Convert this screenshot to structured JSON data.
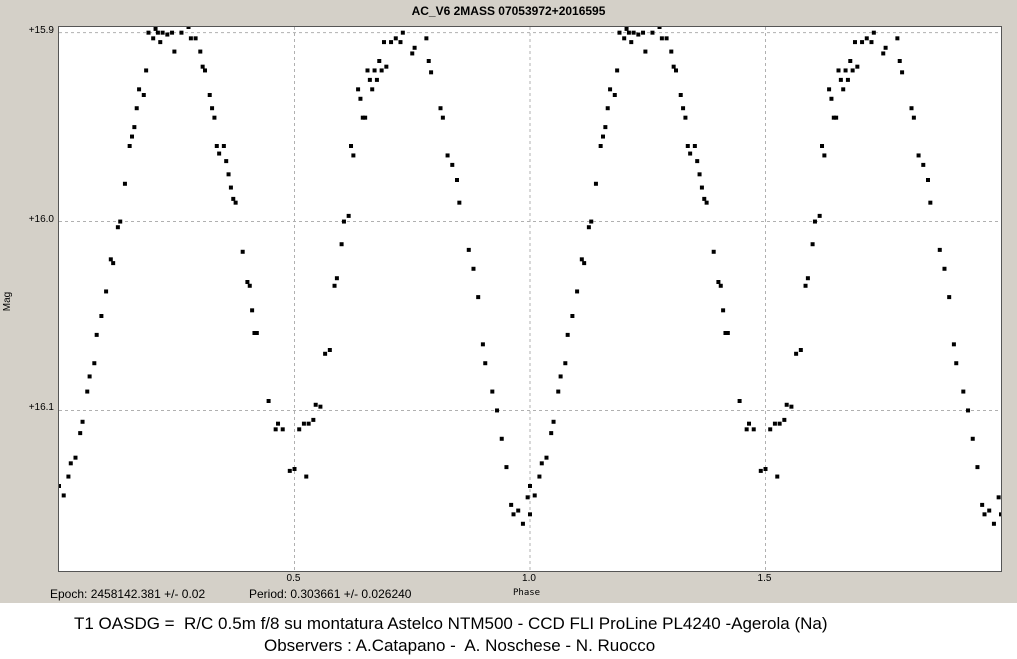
{
  "chart_data": {
    "type": "scatter",
    "title": "AC_V6 2MASS 07053972+2016595",
    "xlabel": "Phase",
    "ylabel": "Mag",
    "xlim": [
      0.0,
      2.0
    ],
    "ylim": [
      16.185,
      15.897
    ],
    "y_inverted": true,
    "grid": true,
    "xticks": [
      {
        "value": 0.5,
        "label": "0.5"
      },
      {
        "value": 1.0,
        "label": "1.0"
      },
      {
        "value": 1.5,
        "label": "1.5"
      }
    ],
    "yticks": [
      {
        "value": 15.9,
        "label": "+15.9"
      },
      {
        "value": 16.0,
        "label": "+16.0"
      },
      {
        "value": 16.1,
        "label": "+16.1"
      }
    ],
    "series": [
      {
        "points": [
          [
            0.0,
            16.14
          ],
          [
            0.01,
            16.145
          ],
          [
            0.02,
            16.135
          ],
          [
            0.025,
            16.128
          ],
          [
            0.035,
            16.125
          ],
          [
            0.045,
            16.112
          ],
          [
            0.05,
            16.106
          ],
          [
            0.06,
            16.09
          ],
          [
            0.065,
            16.082
          ],
          [
            0.075,
            16.075
          ],
          [
            0.08,
            16.06
          ],
          [
            0.09,
            16.05
          ],
          [
            0.1,
            16.037
          ],
          [
            0.11,
            16.02
          ],
          [
            0.115,
            16.022
          ],
          [
            0.125,
            16.003
          ],
          [
            0.13,
            16.0
          ],
          [
            0.14,
            15.98
          ],
          [
            0.15,
            15.96
          ],
          [
            0.155,
            15.955
          ],
          [
            0.16,
            15.95
          ],
          [
            0.165,
            15.94
          ],
          [
            0.17,
            15.93
          ],
          [
            0.18,
            15.933
          ],
          [
            0.185,
            15.92
          ],
          [
            0.19,
            15.9
          ],
          [
            0.2,
            15.903
          ],
          [
            0.205,
            15.898
          ],
          [
            0.21,
            15.9
          ],
          [
            0.215,
            15.905
          ],
          [
            0.22,
            15.9
          ],
          [
            0.23,
            15.901
          ],
          [
            0.24,
            15.9
          ],
          [
            0.245,
            15.91
          ],
          [
            0.25,
            15.895
          ],
          [
            0.255,
            15.89
          ],
          [
            0.26,
            15.9
          ],
          [
            0.265,
            15.893
          ],
          [
            0.27,
            15.892
          ],
          [
            0.275,
            15.897
          ],
          [
            0.28,
            15.903
          ],
          [
            0.29,
            15.903
          ],
          [
            0.3,
            15.91
          ],
          [
            0.305,
            15.918
          ],
          [
            0.31,
            15.92
          ],
          [
            0.32,
            15.933
          ],
          [
            0.325,
            15.94
          ],
          [
            0.33,
            15.945
          ],
          [
            0.335,
            15.96
          ],
          [
            0.34,
            15.964
          ],
          [
            0.35,
            15.96
          ],
          [
            0.355,
            15.968
          ],
          [
            0.36,
            15.975
          ],
          [
            0.365,
            15.982
          ],
          [
            0.37,
            15.988
          ],
          [
            0.375,
            15.99
          ],
          [
            0.39,
            16.016
          ],
          [
            0.4,
            16.032
          ],
          [
            0.405,
            16.034
          ],
          [
            0.41,
            16.047
          ],
          [
            0.415,
            16.059
          ],
          [
            0.42,
            16.059
          ],
          [
            0.445,
            16.095
          ],
          [
            0.46,
            16.11
          ],
          [
            0.465,
            16.107
          ],
          [
            0.475,
            16.11
          ],
          [
            0.49,
            16.132
          ],
          [
            0.5,
            16.131
          ],
          [
            0.51,
            16.11
          ],
          [
            0.52,
            16.107
          ],
          [
            0.525,
            16.135
          ],
          [
            0.53,
            16.107
          ],
          [
            0.54,
            16.105
          ],
          [
            0.545,
            16.097
          ],
          [
            0.555,
            16.098
          ],
          [
            0.565,
            16.07
          ],
          [
            0.575,
            16.068
          ],
          [
            0.585,
            16.034
          ],
          [
            0.59,
            16.03
          ],
          [
            0.6,
            16.012
          ],
          [
            0.605,
            16.0
          ],
          [
            0.615,
            15.997
          ],
          [
            0.62,
            15.96
          ],
          [
            0.625,
            15.965
          ],
          [
            0.635,
            15.93
          ],
          [
            0.64,
            15.935
          ],
          [
            0.645,
            15.945
          ],
          [
            0.65,
            15.945
          ],
          [
            0.655,
            15.92
          ],
          [
            0.66,
            15.925
          ],
          [
            0.665,
            15.93
          ],
          [
            0.67,
            15.92
          ],
          [
            0.675,
            15.925
          ],
          [
            0.68,
            15.915
          ],
          [
            0.685,
            15.92
          ],
          [
            0.69,
            15.905
          ],
          [
            0.695,
            15.918
          ],
          [
            0.7,
            15.89
          ],
          [
            0.705,
            15.905
          ],
          [
            0.71,
            15.88
          ],
          [
            0.715,
            15.903
          ],
          [
            0.72,
            15.875
          ],
          [
            0.725,
            15.905
          ],
          [
            0.73,
            15.9
          ],
          [
            0.735,
            15.888
          ],
          [
            0.74,
            15.895
          ],
          [
            0.745,
            15.88
          ],
          [
            0.75,
            15.911
          ],
          [
            0.755,
            15.908
          ],
          [
            0.76,
            15.89
          ],
          [
            0.765,
            15.87
          ],
          [
            0.77,
            15.895
          ],
          [
            0.775,
            15.87
          ],
          [
            0.78,
            15.903
          ],
          [
            0.785,
            15.915
          ],
          [
            0.79,
            15.921
          ],
          [
            0.795,
            15.88
          ],
          [
            0.8,
            15.86
          ],
          [
            0.805,
            15.865
          ],
          [
            0.81,
            15.94
          ],
          [
            0.815,
            15.945
          ],
          [
            0.825,
            15.965
          ],
          [
            0.835,
            15.97
          ],
          [
            0.845,
            15.978
          ],
          [
            0.85,
            15.99
          ],
          [
            0.87,
            16.015
          ],
          [
            0.88,
            16.025
          ],
          [
            0.89,
            16.04
          ],
          [
            0.9,
            16.065
          ],
          [
            0.905,
            16.075
          ],
          [
            0.92,
            16.09
          ],
          [
            0.93,
            16.1
          ],
          [
            0.94,
            16.115
          ],
          [
            0.95,
            16.13
          ],
          [
            0.96,
            16.15
          ],
          [
            0.965,
            16.155
          ],
          [
            0.975,
            16.153
          ],
          [
            0.985,
            16.16
          ],
          [
            0.995,
            16.146
          ],
          [
            1.0,
            16.155
          ]
        ]
      }
    ]
  },
  "footer": {
    "epoch": "Epoch: 2458142.381 +/- 0.02",
    "period": "Period: 0.303661 +/- 0.026240",
    "credit_line1": "T1 OASDG =  R/C 0.5m f/8 su montatura Astelco NTM500 - CCD FLI ProLine PL4240 -Agerola (Na)",
    "credit_line2": "Observers : A.Catapano -  A. Noschese - N. Ruocco"
  },
  "colors": {
    "background": "#d4d0c8",
    "plot_background": "#ffffff",
    "grid": "#b0b0b0",
    "marker": "#000000"
  }
}
